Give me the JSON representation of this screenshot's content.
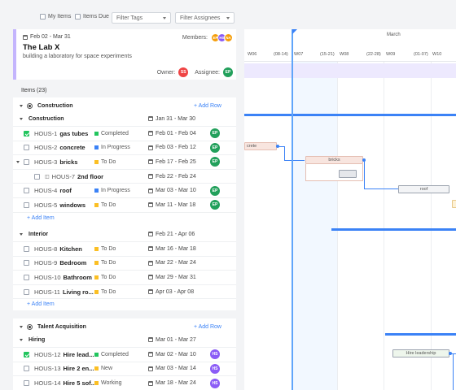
{
  "toolbar": {
    "my_items": "My Items",
    "items_due": "Items Due",
    "filter_tags": "Filter Tags",
    "filter_assignees": "Filter Assignees"
  },
  "project": {
    "dates": "Feb 02 - Mar 31",
    "title": "The Lab X",
    "subtitle": "building a laboratory for space experiments",
    "members_label": "Members:",
    "members": [
      {
        "initials": "EP",
        "color": "#f59e0b"
      },
      {
        "initials": "HS",
        "color": "#8b5cf6"
      },
      {
        "initials": "NA",
        "color": "#f59e0b"
      }
    ],
    "owner_label": "Owner:",
    "owner": {
      "initials": "SS",
      "color": "#ef4444"
    },
    "assignee_label": "Assignee:",
    "assignee": {
      "initials": "EP",
      "color": "#22a05b"
    }
  },
  "items_count": "Items (23)",
  "add_row_label": "+ Add Row",
  "add_item_label": "+ Add Item",
  "groups": [
    {
      "name": "Construction",
      "subgroups": [
        {
          "name": "Construction",
          "dates": "Jan 31 - Mar 30",
          "items": [
            {
              "id": "HOUS-1",
              "name": "gas tubes",
              "status": "Completed",
              "status_color": "#22c55e",
              "dates": "Feb 01 - Feb 04",
              "assignee": "EP",
              "checked": true
            },
            {
              "id": "HOUS-2",
              "name": "concrete",
              "status": "In Progress",
              "status_color": "#3b82f6",
              "dates": "Feb 03 - Feb 12",
              "assignee": "EP",
              "checked": false
            },
            {
              "id": "HOUS-3",
              "name": "bricks",
              "status": "To Do",
              "status_color": "#fbbf24",
              "dates": "Feb 17 - Feb 25",
              "assignee": "EP",
              "checked": false
            },
            {
              "id": "HOUS-7",
              "name": "2nd floor",
              "status": "",
              "status_color": "",
              "dates": "Feb 22 - Feb 24",
              "assignee": "",
              "checked": false
            },
            {
              "id": "HOUS-4",
              "name": "roof",
              "status": "In Progress",
              "status_color": "#3b82f6",
              "dates": "Mar 03 - Mar 10",
              "assignee": "EP",
              "checked": false
            },
            {
              "id": "HOUS-5",
              "name": "windows",
              "status": "To Do",
              "status_color": "#fbbf24",
              "dates": "Mar 11 - Mar 18",
              "assignee": "EP",
              "checked": false
            }
          ]
        },
        {
          "name": "Interior",
          "dates": "Feb 21 - Apr 06",
          "items": [
            {
              "id": "HOUS-8",
              "name": "Kitchen",
              "status": "To Do",
              "status_color": "#fbbf24",
              "dates": "Mar 16 - Mar 18",
              "assignee": "",
              "checked": false
            },
            {
              "id": "HOUS-9",
              "name": "Bedroom",
              "status": "To Do",
              "status_color": "#fbbf24",
              "dates": "Mar 22 - Mar 24",
              "assignee": "",
              "checked": false
            },
            {
              "id": "HOUS-10",
              "name": "Bathroom",
              "status": "To Do",
              "status_color": "#fbbf24",
              "dates": "Mar 29 - Mar 31",
              "assignee": "",
              "checked": false
            },
            {
              "id": "HOUS-11",
              "name": "Living ro...",
              "status": "To Do",
              "status_color": "#fbbf24",
              "dates": "Apr 03 - Apr 08",
              "assignee": "",
              "checked": false
            }
          ]
        }
      ]
    },
    {
      "name": "Talent Acquisition",
      "subgroups": [
        {
          "name": "Hiring",
          "dates": "Mar 01 - Mar 27",
          "items": [
            {
              "id": "HOUS-12",
              "name": "Hire lead...",
              "status": "Completed",
              "status_color": "#22c55e",
              "dates": "Mar 02 - Mar 10",
              "assignee": "HS",
              "checked": true
            },
            {
              "id": "HOUS-13",
              "name": "Hire 2 en...",
              "status": "New",
              "status_color": "#fbbf24",
              "dates": "Mar 03 - Mar 14",
              "assignee": "HS",
              "checked": false
            },
            {
              "id": "HOUS-14",
              "name": "Hire 5 sof...",
              "status": "Working",
              "status_color": "#fbbf24",
              "dates": "Mar 18 - Mar 24",
              "assignee": "HS",
              "checked": false
            }
          ]
        }
      ]
    }
  ],
  "gantt": {
    "month": "March",
    "weeks": [
      "W06",
      "(08-14)",
      "W07",
      "(15-21)",
      "W08",
      "(22-28)",
      "W09",
      "(01-07)",
      "W10"
    ],
    "bars": {
      "bricks": "bricks",
      "roof": "roof",
      "prev": "crete",
      "hire": "Hire leadership"
    }
  },
  "colors": {
    "accent": "#3b82f6",
    "assignee_green": "#22a05b",
    "assignee_purple": "#8b5cf6"
  }
}
